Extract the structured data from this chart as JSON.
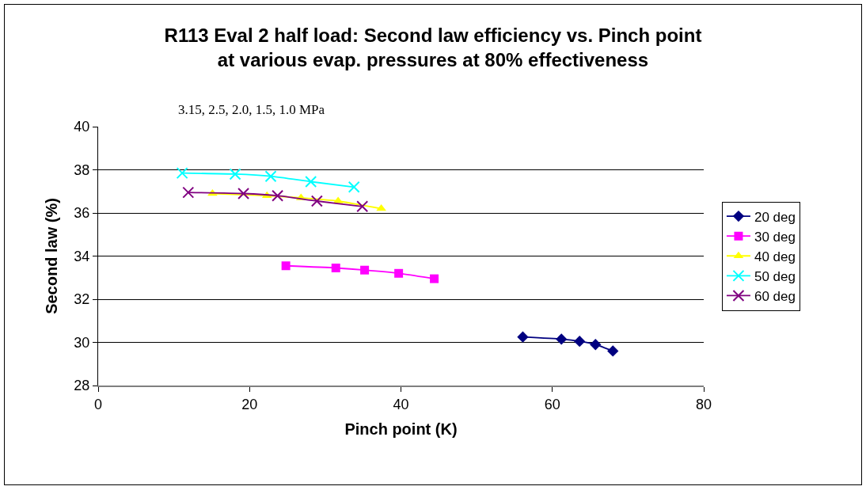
{
  "chart_data": {
    "type": "line",
    "title": "R113 Eval 2 half load: Second law efficiency vs. Pinch point\nat various evap. pressures at 80% effectiveness",
    "xlabel": "Pinch point (K)",
    "ylabel": "Second law (%)",
    "xlim": [
      0,
      80
    ],
    "xticks": [
      0,
      20,
      40,
      60,
      80
    ],
    "ylim": [
      28,
      40
    ],
    "yticks": [
      28,
      30,
      32,
      34,
      36,
      38,
      40
    ],
    "grid": "y",
    "legend": "right",
    "annotations": [
      "3.15, 2.5, 2.0, 1.5, 1.0 MPa"
    ],
    "series": [
      {
        "name": "20 deg",
        "color": "#000080",
        "marker": "diamond",
        "x": [
          56.1,
          61.2,
          63.6,
          65.7,
          68.0
        ],
        "values": [
          30.25,
          30.15,
          30.05,
          29.9,
          29.6
        ]
      },
      {
        "name": "30 deg",
        "color": "#ff00ff",
        "marker": "square",
        "x": [
          24.8,
          31.4,
          35.2,
          39.7,
          44.4
        ],
        "values": [
          33.55,
          33.45,
          33.35,
          33.2,
          32.95
        ]
      },
      {
        "name": "40 deg",
        "color": "#ffff00",
        "marker": "triangle",
        "x": [
          15.1,
          22.3,
          26.8,
          31.7,
          37.4
        ],
        "values": [
          36.9,
          36.8,
          36.7,
          36.55,
          36.2
        ]
      },
      {
        "name": "50 deg",
        "color": "#00ffff",
        "marker": "cross",
        "x": [
          11.1,
          18.1,
          22.8,
          28.1,
          33.8
        ],
        "values": [
          37.85,
          37.8,
          37.7,
          37.45,
          37.2
        ]
      },
      {
        "name": "60 deg",
        "color": "#800080",
        "marker": "cross",
        "x": [
          11.9,
          19.2,
          23.7,
          28.9,
          34.9
        ],
        "values": [
          36.95,
          36.9,
          36.8,
          36.55,
          36.3
        ]
      }
    ]
  }
}
